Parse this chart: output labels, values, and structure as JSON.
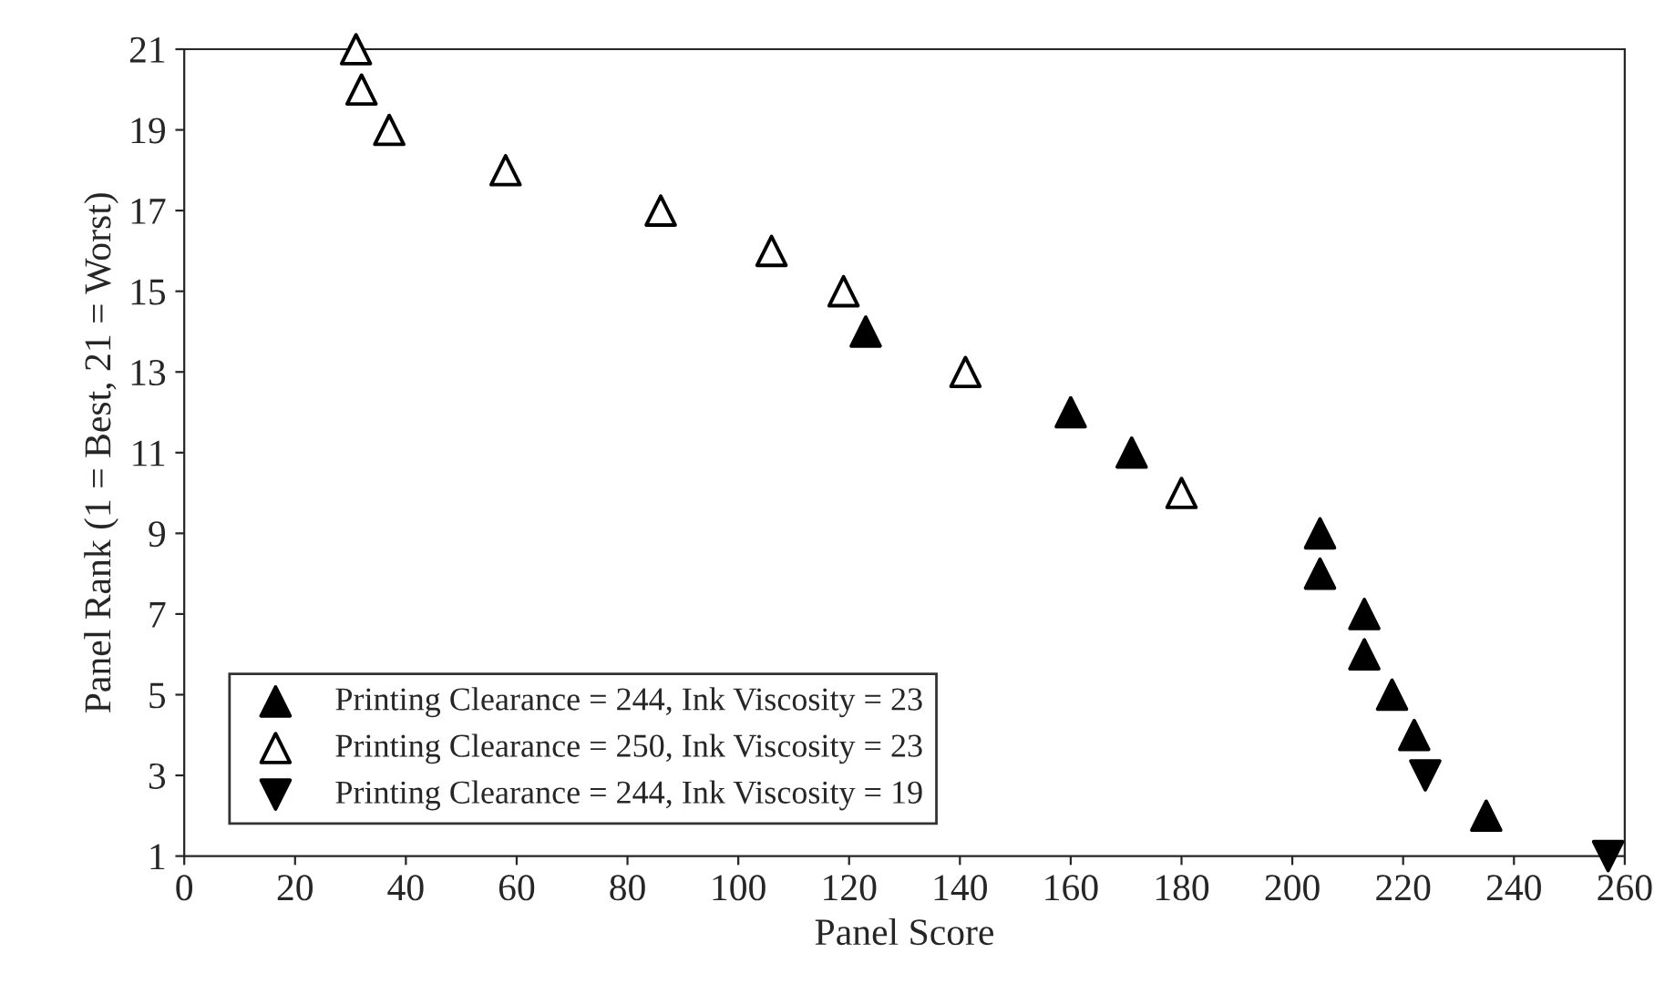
{
  "chart_data": {
    "type": "scatter",
    "xlabel": "Panel Score",
    "ylabel": "Panel Rank (1 = Best, 21 = Worst)",
    "series": [
      {
        "name": "Printing Clearance = 244, Ink Viscosity = 23",
        "color": "#000000",
        "marker": "triangle",
        "x": [
          123,
          160,
          171,
          205,
          205,
          213,
          213,
          218,
          222,
          235
        ],
        "values": [
          14,
          12,
          11,
          9,
          8,
          7,
          6,
          5,
          4,
          2
        ]
      },
      {
        "name": "Printing Clearance = 250, Ink Viscosity = 23",
        "color": "#ffffff",
        "marker": "triangle",
        "x": [
          31,
          32,
          37,
          58,
          86,
          106,
          119,
          141,
          180
        ],
        "values": [
          21,
          20,
          19,
          18,
          17,
          16,
          15,
          13,
          10
        ]
      },
      {
        "name": "Printing Clearance = 244, Ink Viscosity = 19",
        "color": "#000000",
        "marker": "triangle_down",
        "x": [
          224,
          257
        ],
        "values": [
          3,
          1
        ]
      }
    ],
    "xlim": [
      0,
      260
    ],
    "xticks": [
      0,
      20,
      40,
      60,
      80,
      100,
      120,
      140,
      160,
      180,
      200,
      220,
      240,
      260
    ],
    "ylim": [
      1,
      21
    ],
    "yticks": [
      1,
      3,
      5,
      7,
      9,
      11,
      13,
      15,
      17,
      19,
      21
    ],
    "grid": false,
    "legend": "bottom left"
  }
}
